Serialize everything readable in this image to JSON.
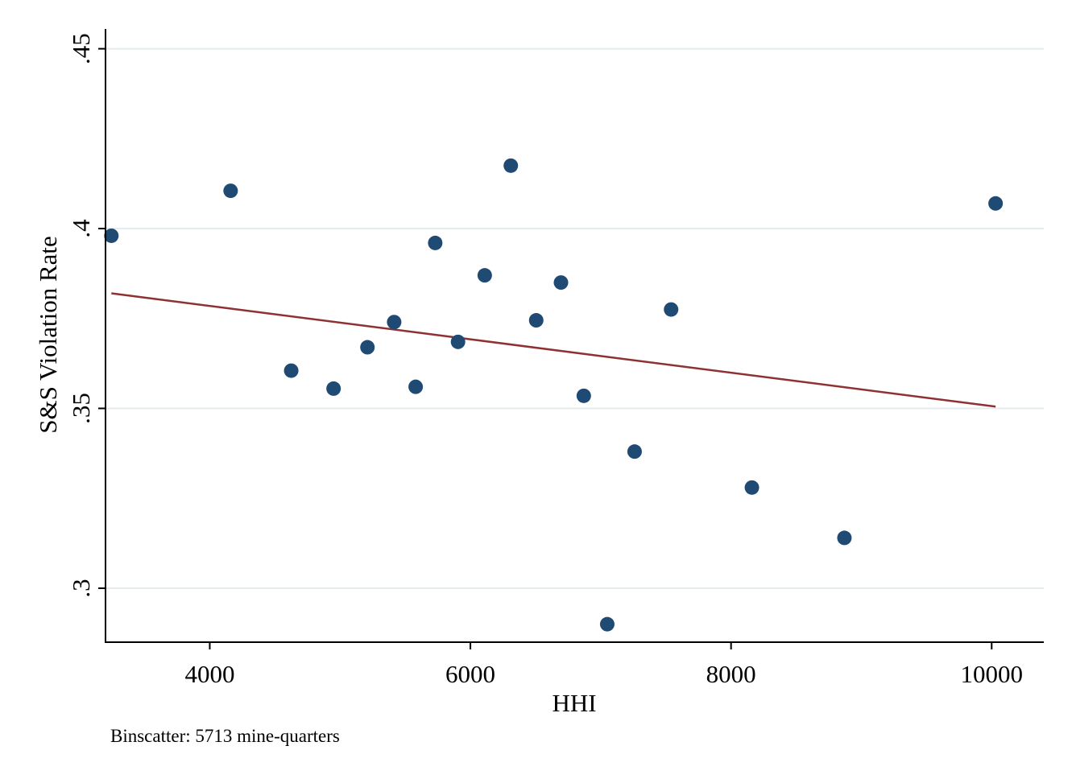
{
  "chart_data": {
    "type": "scatter",
    "title": "",
    "xlabel": "HHI",
    "ylabel": "S&S Violation Rate",
    "note": "Binscatter: 5713 mine-quarters",
    "xlim": [
      3200,
      10400
    ],
    "ylim": [
      0.285,
      0.4555
    ],
    "x_ticks": [
      {
        "value": 4000,
        "label": "4000"
      },
      {
        "value": 6000,
        "label": "6000"
      },
      {
        "value": 8000,
        "label": "8000"
      },
      {
        "value": 10000,
        "label": "10000"
      }
    ],
    "y_ticks": [
      {
        "value": 0.3,
        "label": ".3"
      },
      {
        "value": 0.35,
        "label": ".35"
      },
      {
        "value": 0.4,
        "label": ".4"
      },
      {
        "value": 0.45,
        "label": ".45"
      }
    ],
    "grid": "horizontal",
    "legend": "none",
    "colors": {
      "points": "#1f4a74",
      "fit_line": "#8f3133",
      "grid": "#e5ecef",
      "axis": "#000000"
    },
    "series": [
      {
        "kind": "scatter",
        "points": [
          {
            "x": 3245,
            "y": 0.398
          },
          {
            "x": 4160,
            "y": 0.4105
          },
          {
            "x": 4625,
            "y": 0.3605
          },
          {
            "x": 4950,
            "y": 0.3555
          },
          {
            "x": 5210,
            "y": 0.367
          },
          {
            "x": 5415,
            "y": 0.374
          },
          {
            "x": 5580,
            "y": 0.356
          },
          {
            "x": 5730,
            "y": 0.396
          },
          {
            "x": 5905,
            "y": 0.3685
          },
          {
            "x": 6110,
            "y": 0.387
          },
          {
            "x": 6310,
            "y": 0.4175
          },
          {
            "x": 6505,
            "y": 0.3745
          },
          {
            "x": 6695,
            "y": 0.385
          },
          {
            "x": 6870,
            "y": 0.3535
          },
          {
            "x": 7050,
            "y": 0.29
          },
          {
            "x": 7260,
            "y": 0.338
          },
          {
            "x": 7540,
            "y": 0.3775
          },
          {
            "x": 8160,
            "y": 0.328
          },
          {
            "x": 8870,
            "y": 0.314
          },
          {
            "x": 10030,
            "y": 0.407
          }
        ]
      },
      {
        "kind": "fit_line",
        "points": [
          {
            "x": 3245,
            "y": 0.382
          },
          {
            "x": 10030,
            "y": 0.3505
          }
        ]
      }
    ]
  }
}
